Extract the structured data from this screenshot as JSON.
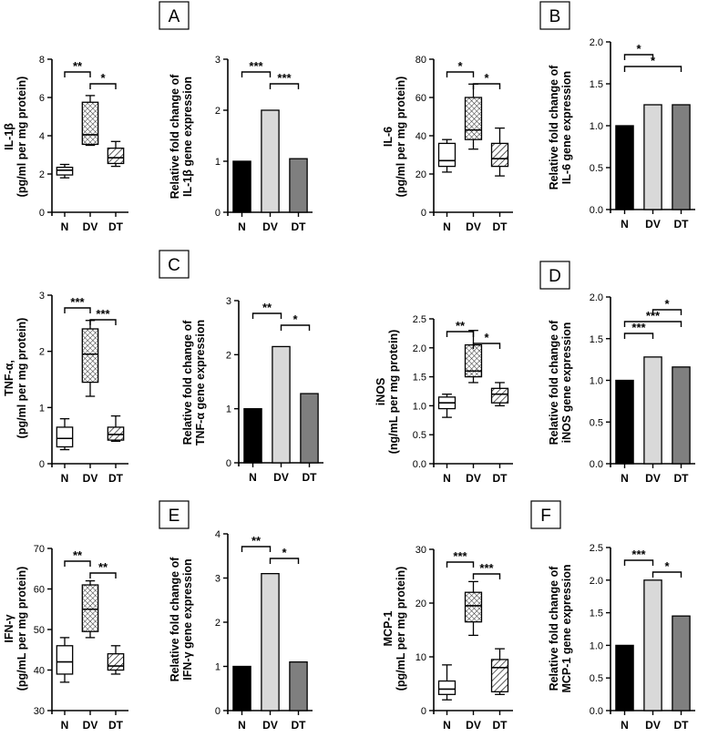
{
  "panel_labels": [
    "A",
    "B",
    "C",
    "D",
    "E",
    "F"
  ],
  "colors": {
    "N": "#000000",
    "DV": "#d9d9d9",
    "DT": "#7f7f7f",
    "box_DV_hatch": "crosshatch",
    "box_DT_hatch": "diagonal"
  },
  "chart_data": [
    {
      "type": "box",
      "ylabel": [
        "IL-1β",
        "(pg/ml per mg protein)"
      ],
      "categories": [
        "N",
        "DV",
        "DT"
      ],
      "ylim": [
        0,
        8
      ],
      "yticks": [
        0,
        2,
        4,
        6,
        8
      ],
      "boxes": [
        {
          "min": 1.8,
          "q1": 1.95,
          "median": 2.2,
          "q3": 2.35,
          "max": 2.5
        },
        {
          "min": 3.5,
          "q1": 3.55,
          "median": 4.05,
          "q3": 5.75,
          "max": 6.1
        },
        {
          "min": 2.4,
          "q1": 2.55,
          "median": 2.85,
          "q3": 3.35,
          "max": 3.7
        }
      ],
      "sig": [
        {
          "from": 0,
          "to": 1,
          "label": "**"
        },
        {
          "from": 1,
          "to": 2,
          "label": "*"
        }
      ]
    },
    {
      "type": "bar",
      "ylabel": [
        "Relative fold change of",
        "IL-1β gene expression"
      ],
      "categories": [
        "N",
        "DV",
        "DT"
      ],
      "ylim": [
        0,
        3
      ],
      "yticks": [
        0,
        1,
        2,
        3
      ],
      "values": [
        1.0,
        2.0,
        1.05
      ],
      "sig": [
        {
          "from": 0,
          "to": 1,
          "label": "***"
        },
        {
          "from": 1,
          "to": 2,
          "label": "***"
        }
      ]
    },
    {
      "type": "box",
      "ylabel": [
        "IL-6",
        "(pg/ml per mg protein)"
      ],
      "categories": [
        "N",
        "DV",
        "DT"
      ],
      "ylim": [
        0,
        80
      ],
      "yticks": [
        0,
        20,
        40,
        60,
        80
      ],
      "boxes": [
        {
          "min": 21,
          "q1": 24,
          "median": 27,
          "q3": 36,
          "max": 38
        },
        {
          "min": 33,
          "q1": 38,
          "median": 43,
          "q3": 60,
          "max": 67
        },
        {
          "min": 19,
          "q1": 24,
          "median": 28,
          "q3": 36,
          "max": 44
        }
      ],
      "sig": [
        {
          "from": 0,
          "to": 1,
          "label": "*"
        },
        {
          "from": 1,
          "to": 2,
          "label": "*"
        }
      ]
    },
    {
      "type": "bar",
      "ylabel": [
        "Relative fold change of",
        "IL-6 gene expression"
      ],
      "categories": [
        "N",
        "DV",
        "DT"
      ],
      "ylim": [
        0,
        2.0
      ],
      "yticks": [
        "0.0",
        "0.5",
        "1.0",
        "1.5",
        "2.0"
      ],
      "values": [
        1.0,
        1.25,
        1.25
      ],
      "sig": [
        {
          "from": 0,
          "to": 1,
          "label": "*"
        },
        {
          "from": 0,
          "to": 2,
          "label": "*"
        }
      ]
    },
    {
      "type": "box",
      "ylabel": [
        "TNF-α,",
        "(pg/ml per mg protein)"
      ],
      "categories": [
        "N",
        "DV",
        "DT"
      ],
      "ylim": [
        0,
        3
      ],
      "yticks": [
        0,
        1,
        2,
        3
      ],
      "boxes": [
        {
          "min": 0.25,
          "q1": 0.3,
          "median": 0.45,
          "q3": 0.65,
          "max": 0.8
        },
        {
          "min": 1.2,
          "q1": 1.45,
          "median": 1.95,
          "q3": 2.4,
          "max": 2.55
        },
        {
          "min": 0.4,
          "q1": 0.42,
          "median": 0.52,
          "q3": 0.65,
          "max": 0.85
        }
      ],
      "sig": [
        {
          "from": 0,
          "to": 1,
          "label": "***"
        },
        {
          "from": 1,
          "to": 2,
          "label": "***"
        }
      ]
    },
    {
      "type": "bar",
      "ylabel": [
        "Relative fold change of",
        "TNF-α gene expression"
      ],
      "categories": [
        "N",
        "DV",
        "DT"
      ],
      "ylim": [
        0,
        3
      ],
      "yticks": [
        0,
        1,
        2,
        3
      ],
      "values": [
        1.0,
        2.15,
        1.28
      ],
      "sig": [
        {
          "from": 0,
          "to": 1,
          "label": "**"
        },
        {
          "from": 1,
          "to": 2,
          "label": "*"
        }
      ]
    },
    {
      "type": "box",
      "ylabel": [
        "iNOS",
        "(ng/mL per mg protein)"
      ],
      "categories": [
        "N",
        "DV",
        "DT"
      ],
      "ylim": [
        0,
        2.5
      ],
      "yticks": [
        "0.0",
        "0.5",
        "1.0",
        "1.5",
        "2.0",
        "2.5"
      ],
      "boxes": [
        {
          "min": 0.8,
          "q1": 0.95,
          "median": 1.05,
          "q3": 1.15,
          "max": 1.2
        },
        {
          "min": 1.4,
          "q1": 1.5,
          "median": 1.6,
          "q3": 2.05,
          "max": 2.3
        },
        {
          "min": 1.0,
          "q1": 1.05,
          "median": 1.2,
          "q3": 1.3,
          "max": 1.4
        }
      ],
      "sig": [
        {
          "from": 0,
          "to": 1,
          "label": "**"
        },
        {
          "from": 1,
          "to": 2,
          "label": "*"
        }
      ]
    },
    {
      "type": "bar",
      "ylabel": [
        "Relative fold change of",
        "iNOS gene expression"
      ],
      "categories": [
        "N",
        "DV",
        "DT"
      ],
      "ylim": [
        0,
        2.0
      ],
      "yticks": [
        "0.0",
        "0.5",
        "1.0",
        "1.5",
        "2.0"
      ],
      "values": [
        1.0,
        1.28,
        1.16
      ],
      "sig": [
        {
          "from": 1,
          "to": 2,
          "label": "*"
        },
        {
          "from": 0,
          "to": 2,
          "label": "***"
        },
        {
          "from": 0,
          "to": 1,
          "label": "***"
        }
      ]
    },
    {
      "type": "box",
      "ylabel": [
        "IFN-γ",
        "(pg/mL per mg protein)"
      ],
      "categories": [
        "N",
        "DV",
        "DT"
      ],
      "ylim": [
        30,
        70
      ],
      "yticks": [
        30,
        40,
        50,
        60,
        70
      ],
      "boxes": [
        {
          "min": 37,
          "q1": 39,
          "median": 42,
          "q3": 46,
          "max": 48
        },
        {
          "min": 48,
          "q1": 49.5,
          "median": 55,
          "q3": 61,
          "max": 62
        },
        {
          "min": 39,
          "q1": 40,
          "median": 41,
          "q3": 44,
          "max": 46
        }
      ],
      "sig": [
        {
          "from": 0,
          "to": 1,
          "label": "**"
        },
        {
          "from": 1,
          "to": 2,
          "label": "**"
        }
      ]
    },
    {
      "type": "bar",
      "ylabel": [
        "Relative fold change of",
        "IFN-γ gene expression"
      ],
      "categories": [
        "N",
        "DV",
        "DT"
      ],
      "ylim": [
        0,
        4
      ],
      "yticks": [
        0,
        1,
        2,
        3,
        4
      ],
      "values": [
        1.0,
        3.1,
        1.1
      ],
      "sig": [
        {
          "from": 0,
          "to": 1,
          "label": "**"
        },
        {
          "from": 1,
          "to": 2,
          "label": "*"
        }
      ]
    },
    {
      "type": "box",
      "ylabel": [
        "MCP-1",
        "(pg/mL per mg protein)"
      ],
      "categories": [
        "N",
        "DV",
        "DT"
      ],
      "ylim": [
        0,
        30
      ],
      "yticks": [
        0,
        10,
        20,
        30
      ],
      "boxes": [
        {
          "min": 2,
          "q1": 3,
          "median": 4,
          "q3": 5.5,
          "max": 8.5
        },
        {
          "min": 14,
          "q1": 16.5,
          "median": 19.5,
          "q3": 22,
          "max": 24
        },
        {
          "min": 3,
          "q1": 3.5,
          "median": 8,
          "q3": 9.5,
          "max": 11.5
        }
      ],
      "sig": [
        {
          "from": 0,
          "to": 1,
          "label": "***"
        },
        {
          "from": 1,
          "to": 2,
          "label": "***"
        }
      ]
    },
    {
      "type": "bar",
      "ylabel": [
        "Relative fold change of",
        "MCP-1 gene expression"
      ],
      "categories": [
        "N",
        "DV",
        "DT"
      ],
      "ylim": [
        0,
        2.5
      ],
      "yticks": [
        "0.0",
        "0.5",
        "1.0",
        "1.5",
        "2.0",
        "2.5"
      ],
      "values": [
        1.0,
        2.0,
        1.45
      ],
      "sig": [
        {
          "from": 0,
          "to": 1,
          "label": "***"
        },
        {
          "from": 1,
          "to": 2,
          "label": "*"
        }
      ]
    }
  ]
}
